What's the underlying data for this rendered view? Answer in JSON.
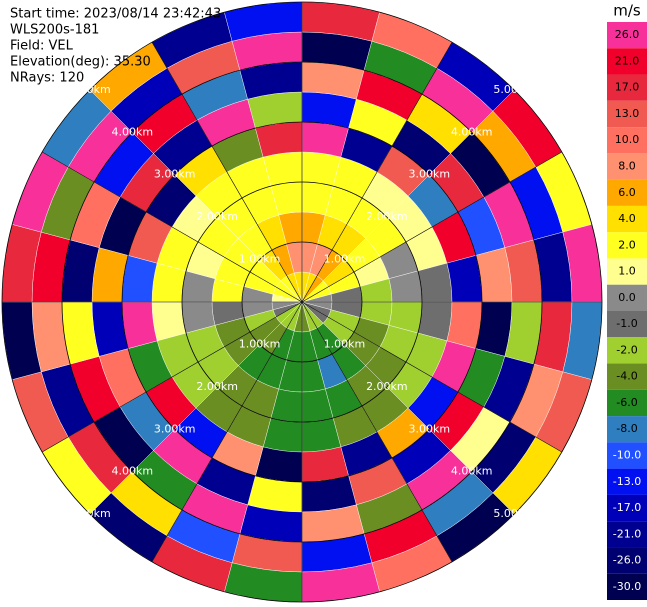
{
  "chart_data": {
    "type": "ppi",
    "info": [
      "Start time: 2023/08/14 23:42:43",
      "WLS200s-181",
      "Field: VEL",
      "Elevation(deg): 35.30",
      "NRays: 120"
    ],
    "azimuths": [
      0,
      15,
      30,
      45,
      60,
      75,
      90,
      105,
      120,
      135,
      150,
      165,
      180,
      195,
      210,
      225,
      240,
      255,
      270,
      285,
      300,
      315,
      330,
      345
    ],
    "sector_width": 15,
    "range_gates": [
      0,
      0.5,
      1,
      1.5,
      2,
      2.5,
      3,
      3.5,
      4,
      4.5,
      5
    ],
    "values": [
      [
        4,
        8,
        6,
        2,
        2,
        26,
        -13,
        8,
        -30,
        17
      ],
      [
        4,
        8,
        4,
        2,
        2,
        -21,
        2,
        21,
        -6,
        10
      ],
      [
        6,
        6,
        4,
        2,
        1,
        13,
        -26,
        4,
        26,
        -17
      ],
      [
        2,
        4,
        2,
        2,
        1,
        -8,
        17,
        -30,
        6,
        21
      ],
      [
        2,
        2,
        1,
        0,
        1,
        21,
        -10,
        26,
        -13,
        2
      ],
      [
        0,
        -1,
        -2,
        0,
        -1,
        -17,
        8,
        13,
        -21,
        26
      ],
      [
        0,
        -1,
        -2,
        -2,
        -1,
        10,
        -30,
        -2,
        17,
        -8
      ],
      [
        -1,
        -2,
        -4,
        -2,
        -2,
        26,
        -6,
        -21,
        8,
        13
      ],
      [
        -1,
        -2,
        -4,
        -4,
        -2,
        -13,
        21,
        1,
        -26,
        4
      ],
      [
        -2,
        -6,
        -6,
        -4,
        -4,
        6,
        -17,
        26,
        -8,
        -30
      ],
      [
        -2,
        -6,
        -8,
        -6,
        -4,
        -21,
        13,
        -4,
        21,
        10
      ],
      [
        -4,
        -6,
        -6,
        -6,
        -6,
        17,
        -26,
        8,
        -13,
        26
      ],
      [
        -4,
        -6,
        -6,
        -6,
        -6,
        -30,
        2,
        -17,
        13,
        -6
      ],
      [
        -2,
        -6,
        -6,
        -4,
        -4,
        8,
        -21,
        26,
        -10,
        17
      ],
      [
        -2,
        -4,
        -6,
        -4,
        -4,
        -13,
        26,
        -6,
        4,
        -26
      ],
      [
        -2,
        -4,
        -4,
        -2,
        -2,
        21,
        -8,
        -30,
        17,
        2
      ],
      [
        -1,
        -2,
        -4,
        -2,
        -2,
        -6,
        10,
        21,
        -21,
        13
      ],
      [
        0,
        0,
        -1,
        0,
        1,
        26,
        -17,
        2,
        8,
        -30
      ],
      [
        1,
        0,
        2,
        0,
        2,
        -10,
        6,
        -26,
        21,
        17
      ],
      [
        2,
        2,
        2,
        1,
        2,
        13,
        -30,
        10,
        -4,
        26
      ],
      [
        2,
        2,
        2,
        2,
        1,
        -26,
        17,
        -13,
        26,
        -8
      ],
      [
        2,
        4,
        2,
        2,
        2,
        4,
        -21,
        21,
        -17,
        6
      ],
      [
        4,
        6,
        4,
        2,
        2,
        -4,
        26,
        -8,
        13,
        -21
      ],
      [
        4,
        8,
        6,
        2,
        2,
        17,
        -2,
        -21,
        26,
        -13
      ]
    ],
    "range_rings": [
      {
        "value": 1,
        "label": "1.00km"
      },
      {
        "value": 2,
        "label": "2.00km"
      },
      {
        "value": 3,
        "label": "3.00km"
      },
      {
        "value": 4,
        "label": "4.00km"
      },
      {
        "value": 5,
        "label": "5.00km"
      }
    ],
    "colorbar": {
      "unit": "m/s",
      "levels": [
        {
          "value": 26,
          "label": "26.0"
        },
        {
          "value": 21,
          "label": "21.0"
        },
        {
          "value": 17,
          "label": "17.0"
        },
        {
          "value": 13,
          "label": "13.0"
        },
        {
          "value": 10,
          "label": "10.0"
        },
        {
          "value": 8,
          "label": "8.0"
        },
        {
          "value": 6,
          "label": "6.0"
        },
        {
          "value": 4,
          "label": "4.0"
        },
        {
          "value": 2,
          "label": "2.0"
        },
        {
          "value": 1,
          "label": "1.0"
        },
        {
          "value": 0,
          "label": "0.0"
        },
        {
          "value": -1,
          "label": "-1.0"
        },
        {
          "value": -2,
          "label": "-2.0"
        },
        {
          "value": -4,
          "label": "-4.0"
        },
        {
          "value": -6,
          "label": "-6.0"
        },
        {
          "value": -8,
          "label": "-8.0"
        },
        {
          "value": -10,
          "label": "-10.0"
        },
        {
          "value": -13,
          "label": "-13.0"
        },
        {
          "value": -17,
          "label": "-17.0"
        },
        {
          "value": -21,
          "label": "-21.0"
        },
        {
          "value": -26,
          "label": "-26.0"
        },
        {
          "value": -30,
          "label": "-30.0"
        }
      ],
      "colors": [
        "#f8309a",
        "#f0002a",
        "#e8283c",
        "#f05a50",
        "#ff7060",
        "#ff9070",
        "#ffa800",
        "#ffe000",
        "#ffff20",
        "#ffff90",
        "#8a8a8a",
        "#6e6e6e",
        "#a0d030",
        "#6b8e23",
        "#228b22",
        "#2f7fc0",
        "#2050ff",
        "#0010f0",
        "#0000b8",
        "#000090",
        "#000070",
        "#000050"
      ]
    }
  }
}
